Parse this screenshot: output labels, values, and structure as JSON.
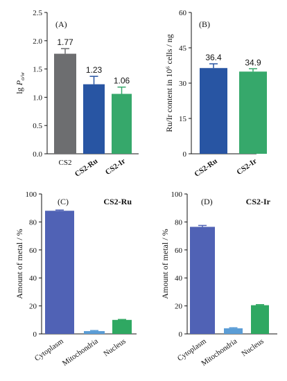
{
  "chart_data": [
    {
      "type": "bar",
      "label": "(A)",
      "ylabel": "lg P",
      "ylabel_sub": "o/w",
      "ylim": [
        0,
        2.5
      ],
      "yticks": [
        "0.0",
        "0.5",
        "1.0",
        "1.5",
        "2.0",
        "2.5"
      ],
      "categories": [
        "CS2",
        "CS2-Ru",
        "CS2-Ir"
      ],
      "category_bold": [
        false,
        true,
        true
      ],
      "values": [
        1.77,
        1.23,
        1.06
      ],
      "errors": [
        0.09,
        0.14,
        0.12
      ],
      "data_labels": [
        "1.77",
        "1.23",
        "1.06"
      ],
      "colors": [
        "#6d6e70",
        "#2855a3",
        "#36a86b"
      ]
    },
    {
      "type": "bar",
      "label": "(B)",
      "ylabel": "Ru/Ir content in 10⁶ cells / ng",
      "ylim": [
        0,
        60
      ],
      "yticks": [
        "0",
        "15",
        "30",
        "45",
        "60"
      ],
      "categories": [
        "CS2-Ru",
        "CS2-Ir"
      ],
      "category_bold": [
        true,
        true
      ],
      "values": [
        36.4,
        34.9
      ],
      "errors": [
        1.8,
        1.2
      ],
      "data_labels": [
        "36.4",
        "34.9"
      ],
      "colors": [
        "#2855a3",
        "#36a86b"
      ]
    },
    {
      "type": "bar",
      "label": "(C)",
      "title": "CS2-Ru",
      "ylabel": "Amount of metal / %",
      "ylim": [
        0,
        100
      ],
      "yticks": [
        "0",
        "20",
        "40",
        "60",
        "80",
        "100"
      ],
      "categories": [
        "Cytoplasm",
        "Mitochondria",
        "Nucleus"
      ],
      "values": [
        88.0,
        2.0,
        10.0
      ],
      "errors": [
        0.5,
        0.4,
        0.3
      ],
      "colors": [
        "#5062b5",
        "#5b9dd6",
        "#2fa862"
      ]
    },
    {
      "type": "bar",
      "label": "(D)",
      "title": "CS2-Ir",
      "ylabel": "Amount of metal / %",
      "ylim": [
        0,
        100
      ],
      "yticks": [
        "0",
        "20",
        "40",
        "60",
        "80",
        "100"
      ],
      "categories": [
        "Cytoplasm",
        "Mitochondria",
        "Nucleus"
      ],
      "values": [
        76.5,
        4.0,
        20.5
      ],
      "errors": [
        1.0,
        0.4,
        0.4
      ],
      "colors": [
        "#5062b5",
        "#5b9dd6",
        "#2fa862"
      ]
    }
  ]
}
